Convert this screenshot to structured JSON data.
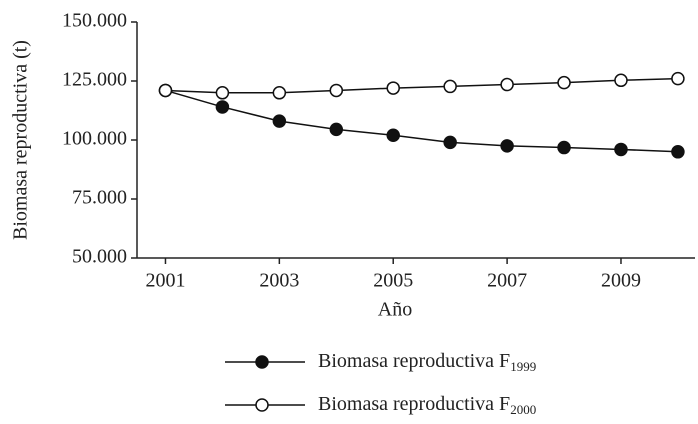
{
  "chart_data": {
    "type": "line",
    "x_label": "Año",
    "y_label": "Biomasa reproductiva (t)",
    "x": [
      2001,
      2002,
      2003,
      2004,
      2005,
      2006,
      2007,
      2008,
      2009,
      2010
    ],
    "series": [
      {
        "name": "Biomasa reproductiva F1999",
        "color": "#111111",
        "marker": "filled",
        "values": [
          121000,
          114000,
          108000,
          104500,
          102000,
          99000,
          97500,
          96800,
          96000,
          95000
        ]
      },
      {
        "name": "Biomasa reproductiva F2000",
        "color": "#111111",
        "marker": "open",
        "values": [
          121000,
          120000,
          120000,
          121000,
          122000,
          122700,
          123500,
          124300,
          125300,
          126000
        ]
      }
    ],
    "xlim": [
      2000.5,
      2010.3
    ],
    "xticks": [
      2001,
      2003,
      2005,
      2007,
      2009
    ],
    "ylim": [
      50000,
      150000
    ],
    "yticks": [
      {
        "value": 50000,
        "label": "50.000"
      },
      {
        "value": 75000,
        "label": "75.000"
      },
      {
        "value": 100000,
        "label": "100.000"
      },
      {
        "value": 125000,
        "label": "125.000"
      },
      {
        "value": 150000,
        "label": "150.000"
      }
    ],
    "legend": "bottom"
  }
}
